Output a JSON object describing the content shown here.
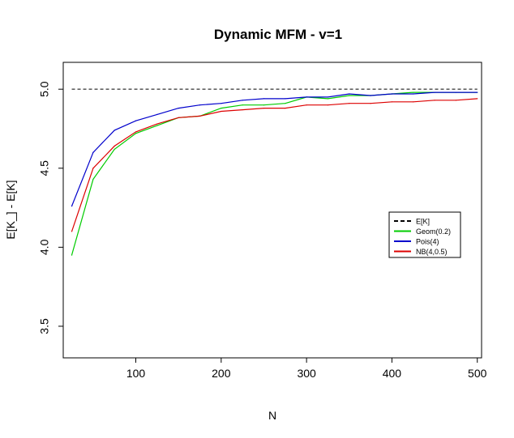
{
  "chart_data": {
    "type": "line",
    "title": "Dynamic MFM - v=1",
    "xlabel": "N",
    "ylabel": "E[K_] - E[K]",
    "xlim": [
      15,
      505
    ],
    "ylim": [
      3.3,
      5.17
    ],
    "xticks": [
      100,
      200,
      300,
      400,
      500
    ],
    "yticks": [
      3.5,
      4.0,
      4.5,
      5.0
    ],
    "legend_position": "right",
    "x": [
      25,
      50,
      75,
      100,
      125,
      150,
      175,
      200,
      225,
      250,
      275,
      300,
      325,
      350,
      375,
      400,
      425,
      450,
      475,
      500
    ],
    "reference": {
      "name": "E[K]",
      "value": 5.0,
      "x_range": [
        25,
        500
      ],
      "color": "#000000",
      "dash": true
    },
    "series": [
      {
        "name": "Geom(0.2)",
        "color": "#00cc00",
        "values": [
          3.95,
          4.43,
          4.62,
          4.72,
          4.77,
          4.82,
          4.83,
          4.88,
          4.9,
          4.9,
          4.91,
          4.95,
          4.94,
          4.96,
          4.96,
          4.97,
          4.98,
          4.98,
          4.98,
          4.98
        ]
      },
      {
        "name": "Pois(4)",
        "color": "#0000cc",
        "values": [
          4.26,
          4.6,
          4.74,
          4.8,
          4.84,
          4.88,
          4.9,
          4.91,
          4.93,
          4.94,
          4.94,
          4.95,
          4.95,
          4.97,
          4.96,
          4.97,
          4.97,
          4.98,
          4.98,
          4.98
        ]
      },
      {
        "name": "NB(4,0.5)",
        "color": "#dd0000",
        "values": [
          4.1,
          4.5,
          4.64,
          4.73,
          4.78,
          4.82,
          4.83,
          4.86,
          4.87,
          4.88,
          4.88,
          4.9,
          4.9,
          4.91,
          4.91,
          4.92,
          4.92,
          4.93,
          4.93,
          4.94
        ]
      }
    ]
  }
}
